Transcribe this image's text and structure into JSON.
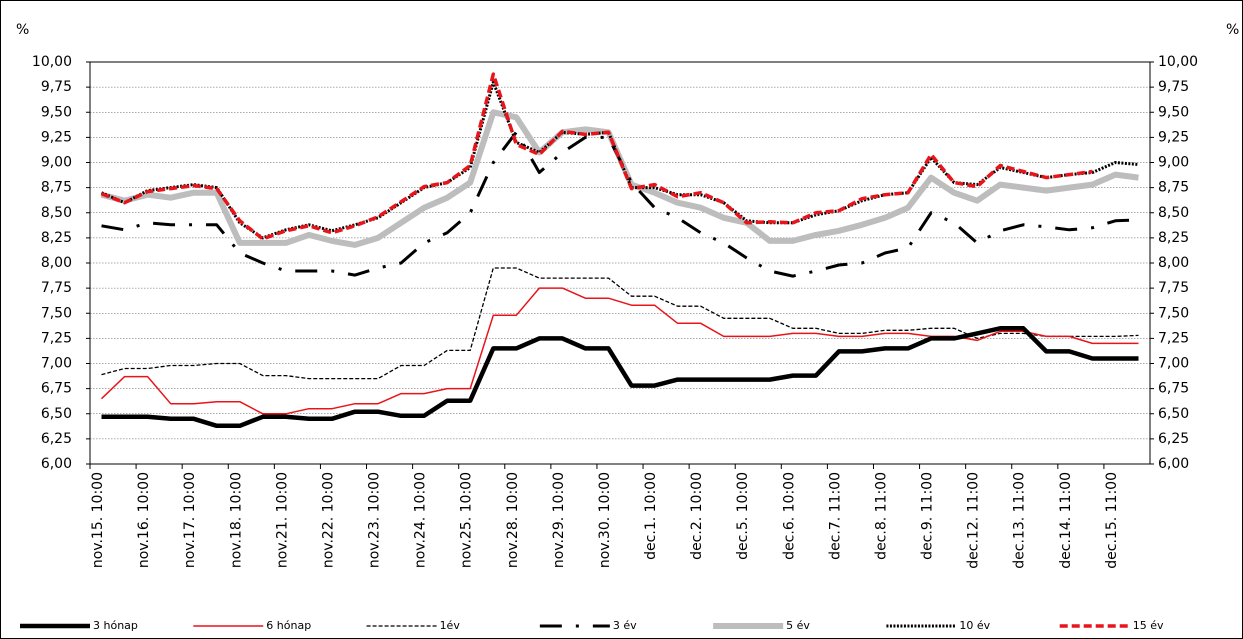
{
  "chart_data": {
    "type": "line",
    "y_label": "%",
    "y2_label": "%",
    "categories": [
      "nov.15. 10:00",
      null,
      "nov.16. 10:00",
      null,
      "nov.17. 10:00",
      null,
      "nov.18. 10:00",
      null,
      "nov.21. 10:00",
      null,
      "nov.22. 10:00",
      null,
      "nov.23. 10:00",
      null,
      "nov.24. 10:00",
      null,
      "nov.25. 10:00",
      null,
      "nov.28. 10:00",
      null,
      "nov.29. 10:00",
      null,
      "nov.30. 10:00",
      null,
      "dec.1. 10:00",
      null,
      "dec.2. 10:00",
      null,
      "dec.5. 10:00",
      null,
      "dec.6. 10:00",
      null,
      "dec.7. 11:00",
      null,
      "dec.8. 11:00",
      null,
      "dec.9. 11:00",
      null,
      "dec.12. 11:00",
      null,
      "dec.13. 11:00",
      null,
      "dec.14. 11:00",
      null,
      "dec.15. 11:00",
      null
    ],
    "ylim": [
      6,
      10
    ],
    "yticks": [
      {
        "value": 6,
        "label": "6,00"
      },
      {
        "value": 6.25,
        "label": "6,25"
      },
      {
        "value": 6.5,
        "label": "6,50"
      },
      {
        "value": 6.75,
        "label": "6,75"
      },
      {
        "value": 7,
        "label": "7,00"
      },
      {
        "value": 7.25,
        "label": "7,25"
      },
      {
        "value": 7.5,
        "label": "7,50"
      },
      {
        "value": 7.75,
        "label": "7,75"
      },
      {
        "value": 8,
        "label": "8,00"
      },
      {
        "value": 8.25,
        "label": "8,25"
      },
      {
        "value": 8.5,
        "label": "8,50"
      },
      {
        "value": 8.75,
        "label": "8,75"
      },
      {
        "value": 9,
        "label": "9,00"
      },
      {
        "value": 9.25,
        "label": "9,25"
      },
      {
        "value": 9.5,
        "label": "9,50"
      },
      {
        "value": 9.75,
        "label": "9,75"
      },
      {
        "value": 10,
        "label": "10,00"
      }
    ],
    "y2lim": [
      6,
      10
    ],
    "y2ticks": [
      {
        "value": 6,
        "label": "6,00"
      },
      {
        "value": 6.25,
        "label": "6,25"
      },
      {
        "value": 6.5,
        "label": "6,50"
      },
      {
        "value": 6.75,
        "label": "6,75"
      },
      {
        "value": 7,
        "label": "7,00"
      },
      {
        "value": 7.25,
        "label": "7,25"
      },
      {
        "value": 7.5,
        "label": "7,50"
      },
      {
        "value": 7.75,
        "label": "7,75"
      },
      {
        "value": 8,
        "label": "8,00"
      },
      {
        "value": 8.25,
        "label": "8,25"
      },
      {
        "value": 8.5,
        "label": "8,50"
      },
      {
        "value": 8.75,
        "label": "8,75"
      },
      {
        "value": 9,
        "label": "9,00"
      },
      {
        "value": 9.25,
        "label": "9,25"
      },
      {
        "value": 9.5,
        "label": "9,50"
      },
      {
        "value": 9.75,
        "label": "9,75"
      },
      {
        "value": 10,
        "label": "10,00"
      }
    ],
    "grid": true,
    "legend": "bottom",
    "series": [
      {
        "name": "3 hónap",
        "color": "#000000",
        "width": 4.5,
        "dash": [],
        "values": [
          6.47,
          6.47,
          6.47,
          6.45,
          6.45,
          6.38,
          6.38,
          6.47,
          6.47,
          6.45,
          6.45,
          6.52,
          6.52,
          6.48,
          6.48,
          6.63,
          6.63,
          7.15,
          7.15,
          7.25,
          7.25,
          7.15,
          7.15,
          6.78,
          6.78,
          6.84,
          6.84,
          6.84,
          6.84,
          6.84,
          6.88,
          6.88,
          7.12,
          7.12,
          7.15,
          7.15,
          7.25,
          7.25,
          7.3,
          7.35,
          7.35,
          7.12,
          7.12,
          7.05,
          7.05,
          7.05
        ]
      },
      {
        "name": "6 hónap",
        "color": "#e8141a",
        "width": 1.5,
        "dash": [],
        "values": [
          6.65,
          6.87,
          6.87,
          6.6,
          6.6,
          6.62,
          6.62,
          6.5,
          6.5,
          6.55,
          6.55,
          6.6,
          6.6,
          6.7,
          6.7,
          6.75,
          6.75,
          7.48,
          7.48,
          7.75,
          7.75,
          7.65,
          7.65,
          7.58,
          7.58,
          7.4,
          7.4,
          7.27,
          7.27,
          7.27,
          7.3,
          7.3,
          7.27,
          7.27,
          7.3,
          7.3,
          7.27,
          7.27,
          7.23,
          7.32,
          7.32,
          7.27,
          7.27,
          7.2,
          7.2,
          7.2
        ]
      },
      {
        "name": "1év",
        "color": "#000000",
        "width": 1.3,
        "dash": [
          4,
          2
        ],
        "values": [
          6.89,
          6.95,
          6.95,
          6.98,
          6.98,
          7,
          7,
          6.88,
          6.88,
          6.85,
          6.85,
          6.85,
          6.85,
          6.98,
          6.98,
          7.13,
          7.13,
          7.95,
          7.95,
          7.85,
          7.85,
          7.85,
          7.85,
          7.67,
          7.67,
          7.57,
          7.57,
          7.45,
          7.45,
          7.45,
          7.35,
          7.35,
          7.3,
          7.3,
          7.33,
          7.33,
          7.35,
          7.35,
          7.25,
          7.3,
          7.3,
          7.27,
          7.27,
          7.27,
          7.27,
          7.28
        ]
      },
      {
        "name": "3 év",
        "color": "#000000",
        "width": 3,
        "dash": [
          22,
          14,
          3,
          14
        ],
        "values": [
          8.37,
          8.33,
          8.4,
          8.38,
          8.38,
          8.38,
          8.1,
          8,
          7.92,
          7.92,
          7.92,
          7.88,
          7.95,
          8,
          8.2,
          8.3,
          8.5,
          9,
          9.3,
          8.9,
          9.1,
          9.25,
          9.25,
          8.8,
          8.55,
          8.45,
          8.3,
          8.2,
          8.05,
          7.92,
          7.87,
          7.92,
          7.98,
          8,
          8.1,
          8.15,
          8.5,
          8.4,
          8.2,
          8.32,
          8.38,
          8.36,
          8.33,
          8.35,
          8.42,
          8.43
        ]
      },
      {
        "name": "5 év",
        "color": "#bdbdbd",
        "width": 6,
        "dash": [],
        "values": [
          8.68,
          8.62,
          8.68,
          8.65,
          8.7,
          8.7,
          8.2,
          8.2,
          8.2,
          8.28,
          8.22,
          8.18,
          8.25,
          8.4,
          8.55,
          8.65,
          8.8,
          9.5,
          9.45,
          9.1,
          9.3,
          9.33,
          9.3,
          8.78,
          8.7,
          8.6,
          8.55,
          8.45,
          8.4,
          8.22,
          8.22,
          8.28,
          8.32,
          8.38,
          8.45,
          8.55,
          8.85,
          8.7,
          8.62,
          8.78,
          8.75,
          8.72,
          8.75,
          8.78,
          8.88,
          8.85
        ]
      },
      {
        "name": "10 év",
        "color": "#000000",
        "width": 3,
        "dash": [
          2,
          1.5
        ],
        "values": [
          8.7,
          8.6,
          8.72,
          8.75,
          8.78,
          8.75,
          8.4,
          8.25,
          8.33,
          8.38,
          8.32,
          8.38,
          8.45,
          8.6,
          8.75,
          8.8,
          8.95,
          9.8,
          9.2,
          9.1,
          9.3,
          9.28,
          9.3,
          8.75,
          8.75,
          8.68,
          8.68,
          8.6,
          8.42,
          8.4,
          8.4,
          8.48,
          8.52,
          8.62,
          8.68,
          8.7,
          9.05,
          8.8,
          8.78,
          8.95,
          8.9,
          8.85,
          8.88,
          8.9,
          9,
          8.98
        ]
      },
      {
        "name": "15 év",
        "color": "#e8141a",
        "width": 3.5,
        "dash": [
          8,
          4
        ],
        "values": [
          8.69,
          8.6,
          8.71,
          8.74,
          8.77,
          8.74,
          8.42,
          8.24,
          8.32,
          8.37,
          8.3,
          8.37,
          8.46,
          8.61,
          8.76,
          8.8,
          8.97,
          9.88,
          9.18,
          9.08,
          9.31,
          9.28,
          9.3,
          8.74,
          8.78,
          8.66,
          8.7,
          8.6,
          8.4,
          8.41,
          8.4,
          8.5,
          8.52,
          8.64,
          8.68,
          8.7,
          9.08,
          8.8,
          8.76,
          8.97,
          8.91,
          8.85,
          8.88,
          8.91,
          null,
          null
        ]
      }
    ]
  }
}
